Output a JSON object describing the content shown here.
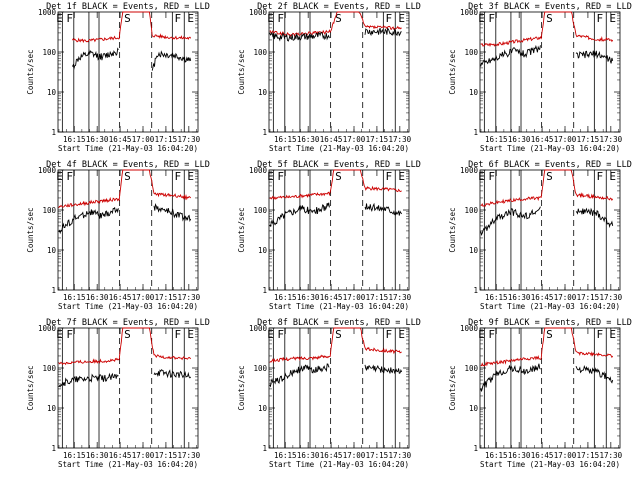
{
  "chart_data": [
    {
      "type": "line",
      "title": "Det  1f BLACK = Events, RED = LLD",
      "ylabel": "Counts/sec",
      "xlabel": "Start Time (21-May-03 16:04:20)",
      "x_ticks": [
        "16:15",
        "16:30",
        "16:45",
        "17:00",
        "17:15",
        "17:30"
      ],
      "y_ticks": [
        "1",
        "10",
        "100",
        "1000"
      ],
      "y_scale": "log",
      "ylim": [
        1,
        1000
      ],
      "markers": [
        "E",
        "F",
        "S",
        "F",
        "E"
      ],
      "series": [
        {
          "color": "#cc0000",
          "values": [
            [
              16.23,
              200
            ],
            [
              16.4,
              190
            ],
            [
              16.74,
              230
            ],
            [
              16.78,
              1000
            ],
            [
              17.07,
              1000
            ],
            [
              17.1,
              260
            ],
            [
              17.3,
              230
            ],
            [
              17.52,
              220
            ]
          ]
        },
        {
          "color": "#000000",
          "values": [
            [
              16.23,
              40
            ],
            [
              16.3,
              70
            ],
            [
              16.42,
              90
            ],
            [
              16.56,
              75
            ],
            [
              16.74,
              110
            ],
            [
              17.1,
              30
            ],
            [
              17.15,
              90
            ],
            [
              17.35,
              80
            ],
            [
              17.52,
              60
            ]
          ]
        }
      ]
    },
    {
      "type": "line",
      "title": "Det  2f BLACK = Events, RED = LLD",
      "ylabel": "Counts/sec",
      "xlabel": "Start Time (21-May-03 16:04:20)",
      "x_ticks": [
        "16:15",
        "16:30",
        "16:45",
        "17:00",
        "17:15",
        "17:30"
      ],
      "y_ticks": [
        "1",
        "10",
        "100",
        "1000"
      ],
      "y_scale": "log",
      "ylim": [
        1,
        1000
      ],
      "markers": [
        "E",
        "F",
        "S",
        "F",
        "E"
      ],
      "series": [
        {
          "color": "#cc0000",
          "values": [
            [
              16.08,
              320
            ],
            [
              16.3,
              270
            ],
            [
              16.58,
              300
            ],
            [
              16.74,
              320
            ],
            [
              16.82,
              1000
            ],
            [
              17.06,
              1000
            ],
            [
              17.12,
              420
            ],
            [
              17.35,
              410
            ],
            [
              17.52,
              390
            ]
          ]
        },
        {
          "color": "#000000",
          "values": [
            [
              16.08,
              250
            ],
            [
              16.3,
              230
            ],
            [
              16.58,
              250
            ],
            [
              16.74,
              260
            ],
            [
              17.12,
              330
            ],
            [
              17.35,
              320
            ],
            [
              17.52,
              320
            ]
          ]
        }
      ]
    },
    {
      "type": "line",
      "title": "Det  3f BLACK = Events, RED = LLD",
      "ylabel": "Counts/sec",
      "xlabel": "Start Time (21-May-03 16:04:20)",
      "x_ticks": [
        "16:15",
        "16:30",
        "16:45",
        "17:00",
        "17:15",
        "17:30"
      ],
      "y_ticks": [
        "1",
        "10",
        "100",
        "1000"
      ],
      "y_scale": "log",
      "ylim": [
        1,
        1000
      ],
      "markers": [
        "E",
        "F",
        "S",
        "F",
        "E"
      ],
      "series": [
        {
          "color": "#cc0000",
          "values": [
            [
              16.08,
              150
            ],
            [
              16.3,
              160
            ],
            [
              16.56,
              200
            ],
            [
              16.74,
              230
            ],
            [
              16.78,
              1000
            ],
            [
              17.07,
              1000
            ],
            [
              17.12,
              260
            ],
            [
              17.35,
              210
            ],
            [
              17.52,
              200
            ]
          ]
        },
        {
          "color": "#000000",
          "values": [
            [
              16.08,
              50
            ],
            [
              16.3,
              80
            ],
            [
              16.45,
              110
            ],
            [
              16.56,
              90
            ],
            [
              16.74,
              130
            ],
            [
              17.12,
              80
            ],
            [
              17.35,
              90
            ],
            [
              17.52,
              60
            ]
          ]
        }
      ]
    },
    {
      "type": "line",
      "title": "Det  4f BLACK = Events, RED = LLD",
      "ylabel": "Counts/sec",
      "xlabel": "Start Time (21-May-03 16:04:20)",
      "x_ticks": [
        "16:15",
        "16:30",
        "16:45",
        "17:00",
        "17:15",
        "17:30"
      ],
      "y_ticks": [
        "1",
        "10",
        "100",
        "1000"
      ],
      "y_scale": "log",
      "ylim": [
        1,
        1000
      ],
      "markers": [
        "E",
        "F",
        "S",
        "F",
        "E"
      ],
      "series": [
        {
          "color": "#cc0000",
          "values": [
            [
              16.08,
              120
            ],
            [
              16.3,
              140
            ],
            [
              16.56,
              170
            ],
            [
              16.74,
              190
            ],
            [
              16.78,
              1000
            ],
            [
              17.07,
              1000
            ],
            [
              17.12,
              250
            ],
            [
              17.35,
              230
            ],
            [
              17.52,
              200
            ]
          ]
        },
        {
          "color": "#000000",
          "values": [
            [
              16.08,
              30
            ],
            [
              16.25,
              60
            ],
            [
              16.42,
              90
            ],
            [
              16.56,
              70
            ],
            [
              16.74,
              110
            ],
            [
              17.12,
              120
            ],
            [
              17.35,
              80
            ],
            [
              17.52,
              60
            ]
          ]
        }
      ]
    },
    {
      "type": "line",
      "title": "Det  5f BLACK = Events, RED = LLD",
      "ylabel": "Counts/sec",
      "xlabel": "Start Time (21-May-03 16:04:20)",
      "x_ticks": [
        "16:15",
        "16:30",
        "16:45",
        "17:00",
        "17:15",
        "17:30"
      ],
      "y_ticks": [
        "1",
        "10",
        "100",
        "1000"
      ],
      "y_scale": "log",
      "ylim": [
        1,
        1000
      ],
      "markers": [
        "E",
        "F",
        "S",
        "F",
        "E"
      ],
      "series": [
        {
          "color": "#cc0000",
          "values": [
            [
              16.08,
              200
            ],
            [
              16.3,
              210
            ],
            [
              16.56,
              240
            ],
            [
              16.74,
              260
            ],
            [
              16.78,
              1000
            ],
            [
              17.07,
              1000
            ],
            [
              17.12,
              350
            ],
            [
              17.35,
              330
            ],
            [
              17.52,
              300
            ]
          ]
        },
        {
          "color": "#000000",
          "values": [
            [
              16.08,
              40
            ],
            [
              16.25,
              80
            ],
            [
              16.42,
              110
            ],
            [
              16.56,
              90
            ],
            [
              16.74,
              130
            ],
            [
              17.12,
              120
            ],
            [
              17.35,
              110
            ],
            [
              17.52,
              80
            ]
          ]
        }
      ]
    },
    {
      "type": "line",
      "title": "Det  6f BLACK = Events, RED = LLD",
      "ylabel": "Counts/sec",
      "xlabel": "Start Time (21-May-03 16:04:20)",
      "x_ticks": [
        "16:15",
        "16:30",
        "16:45",
        "17:00",
        "17:15",
        "17:30"
      ],
      "y_ticks": [
        "1",
        "10",
        "100",
        "1000"
      ],
      "y_scale": "log",
      "ylim": [
        1,
        1000
      ],
      "markers": [
        "E",
        "F",
        "S",
        "F",
        "E"
      ],
      "series": [
        {
          "color": "#cc0000",
          "values": [
            [
              16.08,
              130
            ],
            [
              16.3,
              160
            ],
            [
              16.56,
              190
            ],
            [
              16.74,
              200
            ],
            [
              16.78,
              1000
            ],
            [
              17.07,
              1000
            ],
            [
              17.12,
              240
            ],
            [
              17.35,
              210
            ],
            [
              17.52,
              190
            ]
          ]
        },
        {
          "color": "#000000",
          "values": [
            [
              16.08,
              25
            ],
            [
              16.25,
              60
            ],
            [
              16.42,
              90
            ],
            [
              16.56,
              70
            ],
            [
              16.74,
              100
            ],
            [
              17.12,
              100
            ],
            [
              17.35,
              80
            ],
            [
              17.52,
              40
            ]
          ]
        }
      ]
    },
    {
      "type": "line",
      "title": "Det  7f BLACK = Events, RED = LLD",
      "ylabel": "Counts/sec",
      "xlabel": "Start Time (21-May-03 16:04:20)",
      "x_ticks": [
        "16:15",
        "16:30",
        "16:45",
        "17:00",
        "17:15",
        "17:30"
      ],
      "y_ticks": [
        "1",
        "10",
        "100",
        "1000"
      ],
      "y_scale": "log",
      "ylim": [
        1,
        1000
      ],
      "markers": [
        "E",
        "F",
        "S",
        "F",
        "E"
      ],
      "series": [
        {
          "color": "#cc0000",
          "values": [
            [
              16.08,
              130
            ],
            [
              16.3,
              140
            ],
            [
              16.56,
              150
            ],
            [
              16.74,
              160
            ],
            [
              16.78,
              1000
            ],
            [
              17.07,
              1000
            ],
            [
              17.12,
              200
            ],
            [
              17.35,
              180
            ],
            [
              17.52,
              170
            ]
          ]
        },
        {
          "color": "#000000",
          "values": [
            [
              16.08,
              40
            ],
            [
              16.25,
              50
            ],
            [
              16.42,
              55
            ],
            [
              16.56,
              55
            ],
            [
              16.74,
              60
            ],
            [
              17.12,
              80
            ],
            [
              17.35,
              70
            ],
            [
              17.52,
              60
            ]
          ]
        }
      ]
    },
    {
      "type": "line",
      "title": "Det  8f BLACK = Events, RED = LLD",
      "ylabel": "Counts/sec",
      "xlabel": "Start Time (21-May-03 16:04:20)",
      "x_ticks": [
        "16:15",
        "16:30",
        "16:45",
        "17:00",
        "17:15",
        "17:30"
      ],
      "y_ticks": [
        "1",
        "10",
        "100",
        "1000"
      ],
      "y_scale": "log",
      "ylim": [
        1,
        1000
      ],
      "markers": [
        "E",
        "F",
        "S",
        "F",
        "E"
      ],
      "series": [
        {
          "color": "#cc0000",
          "values": [
            [
              16.08,
              150
            ],
            [
              16.3,
              170
            ],
            [
              16.56,
              180
            ],
            [
              16.74,
              200
            ],
            [
              16.78,
              1000
            ],
            [
              17.07,
              1000
            ],
            [
              17.12,
              300
            ],
            [
              17.35,
              270
            ],
            [
              17.52,
              250
            ]
          ]
        },
        {
          "color": "#000000",
          "values": [
            [
              16.08,
              40
            ],
            [
              16.25,
              60
            ],
            [
              16.42,
              100
            ],
            [
              16.56,
              90
            ],
            [
              16.74,
              110
            ],
            [
              17.12,
              100
            ],
            [
              17.35,
              90
            ],
            [
              17.52,
              80
            ]
          ]
        }
      ]
    },
    {
      "type": "line",
      "title": "Det  9f BLACK = Events, RED = LLD",
      "ylabel": "Counts/sec",
      "xlabel": "Start Time (21-May-03 16:04:20)",
      "x_ticks": [
        "16:15",
        "16:30",
        "16:45",
        "17:00",
        "17:15",
        "17:30"
      ],
      "y_ticks": [
        "1",
        "10",
        "100",
        "1000"
      ],
      "y_scale": "log",
      "ylim": [
        1,
        1000
      ],
      "markers": [
        "E",
        "F",
        "S",
        "F",
        "E"
      ],
      "series": [
        {
          "color": "#cc0000",
          "values": [
            [
              16.08,
              120
            ],
            [
              16.3,
              140
            ],
            [
              16.56,
              170
            ],
            [
              16.74,
              180
            ],
            [
              16.78,
              1000
            ],
            [
              17.07,
              1000
            ],
            [
              17.12,
              240
            ],
            [
              17.35,
              220
            ],
            [
              17.52,
              200
            ]
          ]
        },
        {
          "color": "#000000",
          "values": [
            [
              16.08,
              30
            ],
            [
              16.25,
              70
            ],
            [
              16.42,
              100
            ],
            [
              16.56,
              80
            ],
            [
              16.74,
              110
            ],
            [
              17.12,
              100
            ],
            [
              17.35,
              80
            ],
            [
              17.52,
              50
            ]
          ]
        }
      ]
    }
  ]
}
